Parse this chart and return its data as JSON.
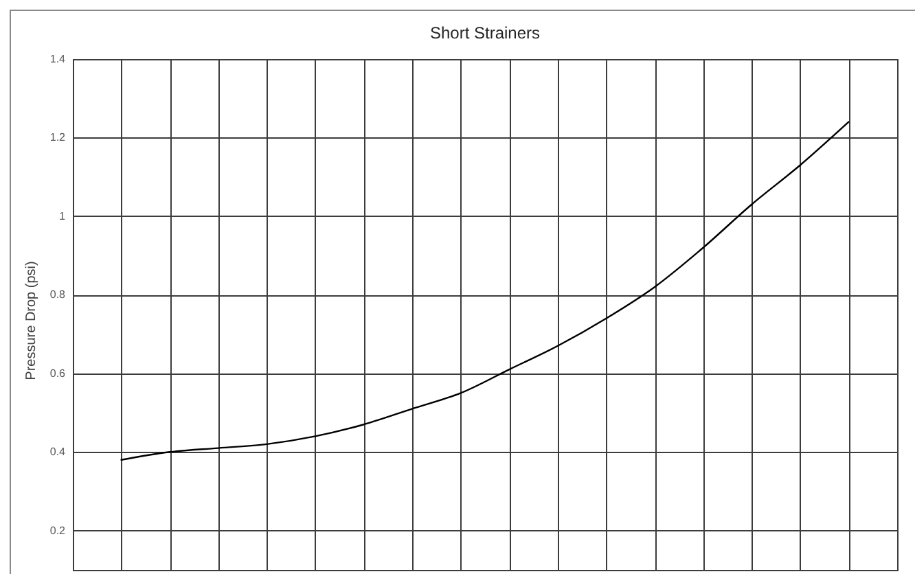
{
  "chart_data": {
    "type": "line",
    "title": "Short Strainers",
    "ylabel": "Pressure Drop (psi)",
    "categories": [
      null,
      null,
      null,
      null,
      null,
      null,
      null,
      null,
      null,
      null,
      null,
      null,
      null,
      null,
      null,
      null
    ],
    "series": [
      {
        "color": "#000000",
        "values": [
          0.38,
          0.4,
          0.41,
          0.42,
          0.44,
          0.47,
          0.51,
          0.55,
          0.61,
          0.67,
          0.74,
          0.82,
          0.92,
          1.03,
          1.13,
          1.24
        ]
      }
    ],
    "ylim": [
      0.1,
      1.4
    ],
    "yticks": [
      0.2,
      0.4,
      0.6,
      0.8,
      1,
      1.2,
      1.4
    ],
    "grid": true,
    "tick_labels": "y"
  }
}
